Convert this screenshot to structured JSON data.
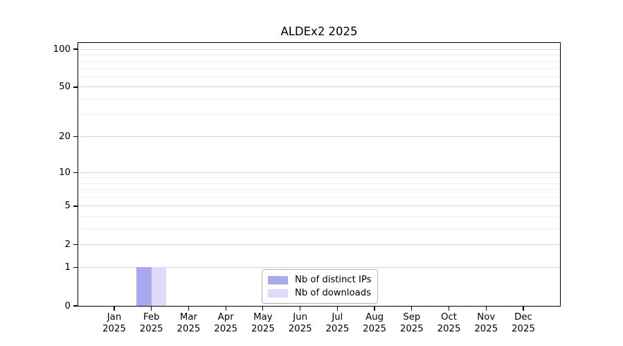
{
  "figure": {
    "background": "#ffffff"
  },
  "chart_data": {
    "type": "bar",
    "title": "ALDEx2 2025",
    "categories": [
      "Jan",
      "Feb",
      "Mar",
      "Apr",
      "May",
      "Jun",
      "Jul",
      "Aug",
      "Sep",
      "Oct",
      "Nov",
      "Dec"
    ],
    "year": "2025",
    "series": [
      {
        "name": "Nb of distinct IPs",
        "color": "#a9a9f1",
        "values": [
          0,
          1,
          0,
          0,
          0,
          0,
          0,
          0,
          0,
          0,
          0,
          0
        ]
      },
      {
        "name": "Nb of downloads",
        "color": "#dcdcf8",
        "values": [
          0,
          1,
          0,
          0,
          0,
          0,
          0,
          0,
          0,
          0,
          0,
          0
        ]
      }
    ],
    "yscale": "log1p",
    "ylim": [
      0,
      112
    ],
    "yticks": [
      0,
      1,
      2,
      5,
      10,
      20,
      50,
      100
    ],
    "minor_yticks": [
      3,
      4,
      6,
      7,
      8,
      9,
      30,
      40,
      60,
      70,
      80,
      90
    ],
    "grid": "horizontal major and minor gridlines",
    "legend_position": "lower center"
  },
  "colors": {
    "background": "#ffffff",
    "axis": "#000000",
    "text": "#000000",
    "major_grid": "#d4d4d4",
    "minor_grid": "#f0f0f0",
    "legend_border": "#b3b3b3",
    "bar_distinct_ips": "#a9a9f1",
    "bar_downloads": "#dcdcf8"
  }
}
